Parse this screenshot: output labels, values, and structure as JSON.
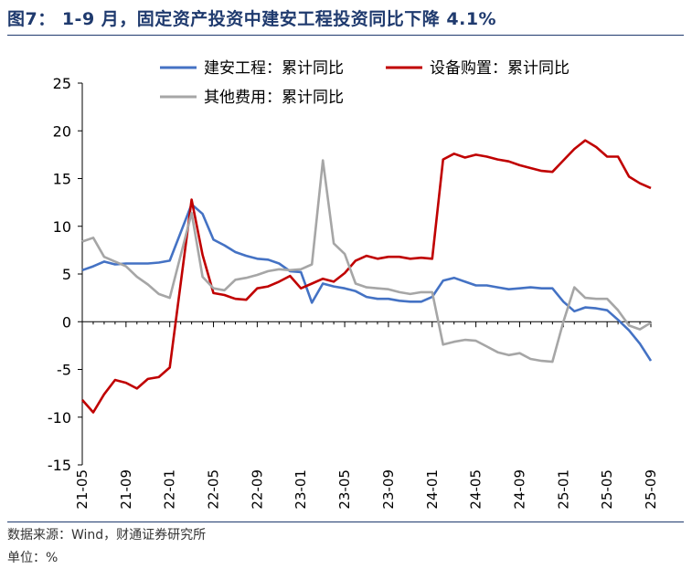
{
  "title": "图7： 1-9 月，固定资产投资中建安工程投资同比下降 4.1%",
  "footer": {
    "source": "数据来源：Wind，财通证券研究所",
    "unit": "单位：%"
  },
  "chart_data": {
    "type": "line",
    "legend_position": "top",
    "ylim": [
      -15,
      25
    ],
    "yticks": [
      -15,
      -10,
      -5,
      0,
      5,
      10,
      15,
      20,
      25
    ],
    "grid": false,
    "x": [
      "21-05",
      "21-06",
      "21-07",
      "21-08",
      "21-09",
      "21-10",
      "21-11",
      "21-12",
      "22-01",
      "22-02",
      "22-03",
      "22-04",
      "22-05",
      "22-06",
      "22-07",
      "22-08",
      "22-09",
      "22-10",
      "22-11",
      "22-12",
      "23-01",
      "23-02",
      "23-03",
      "23-04",
      "23-05",
      "23-06",
      "23-07",
      "23-08",
      "23-09",
      "23-10",
      "23-11",
      "23-12",
      "24-01",
      "24-02",
      "24-03",
      "24-04",
      "24-05",
      "24-06",
      "24-07",
      "24-08",
      "24-09",
      "24-10",
      "24-11",
      "24-12",
      "25-01",
      "25-02",
      "25-03",
      "25-04",
      "25-05",
      "25-06",
      "25-07",
      "25-08",
      "25-09"
    ],
    "xtick_labels": [
      "21-05",
      "21-09",
      "22-01",
      "22-05",
      "22-09",
      "23-01",
      "23-05",
      "23-09",
      "24-01",
      "24-05",
      "24-09",
      "25-01",
      "25-05",
      "25-09"
    ],
    "xtick_every": 4,
    "series": [
      {
        "name": "建安工程：累计同比",
        "color": "#4472c4",
        "values": [
          5.4,
          5.8,
          6.3,
          6.0,
          6.1,
          6.1,
          6.1,
          6.2,
          6.4,
          null,
          12.3,
          11.3,
          8.6,
          8.0,
          7.3,
          6.9,
          6.6,
          6.5,
          6.1,
          5.3,
          5.2,
          2.0,
          4.0,
          3.7,
          3.5,
          3.2,
          2.6,
          2.4,
          2.4,
          2.2,
          2.1,
          2.1,
          2.6,
          4.3,
          4.6,
          4.2,
          3.8,
          3.8,
          3.6,
          3.4,
          3.5,
          3.6,
          3.5,
          3.5,
          2.1,
          1.1,
          1.5,
          1.4,
          1.2,
          0.2,
          -0.9,
          -2.3,
          -4.1
        ]
      },
      {
        "name": "设备购置：累计同比",
        "color": "#c00000",
        "values": [
          -8.2,
          -9.5,
          -7.6,
          -6.1,
          -6.4,
          -7.0,
          -6.0,
          -5.8,
          -4.8,
          null,
          12.8,
          7.0,
          3.0,
          2.8,
          2.4,
          2.3,
          3.5,
          3.7,
          4.2,
          4.8,
          3.5,
          4.0,
          4.5,
          4.2,
          5.1,
          6.4,
          6.9,
          6.6,
          6.8,
          6.8,
          6.6,
          6.7,
          6.6,
          17.0,
          17.6,
          17.2,
          17.5,
          17.3,
          17.0,
          16.8,
          16.4,
          16.1,
          15.8,
          15.7,
          16.9,
          18.1,
          19.0,
          18.3,
          17.3,
          17.3,
          15.2,
          14.5,
          14.0
        ]
      },
      {
        "name": "其他费用：累计同比",
        "color": "#a6a6a6",
        "values": [
          8.4,
          8.8,
          6.8,
          6.3,
          5.8,
          4.7,
          3.9,
          2.9,
          2.5,
          null,
          11.4,
          4.7,
          3.5,
          3.3,
          4.4,
          4.6,
          4.9,
          5.3,
          5.5,
          5.4,
          5.5,
          6.0,
          16.9,
          8.2,
          7.1,
          4.0,
          3.6,
          3.5,
          3.4,
          3.1,
          2.9,
          3.1,
          3.1,
          -2.4,
          -2.1,
          -1.9,
          -2.0,
          -2.6,
          -3.2,
          -3.5,
          -3.3,
          -3.9,
          -4.1,
          -4.2,
          0.0,
          3.6,
          2.5,
          2.4,
          2.4,
          1.2,
          -0.4,
          -0.8,
          -0.1
        ]
      }
    ]
  }
}
